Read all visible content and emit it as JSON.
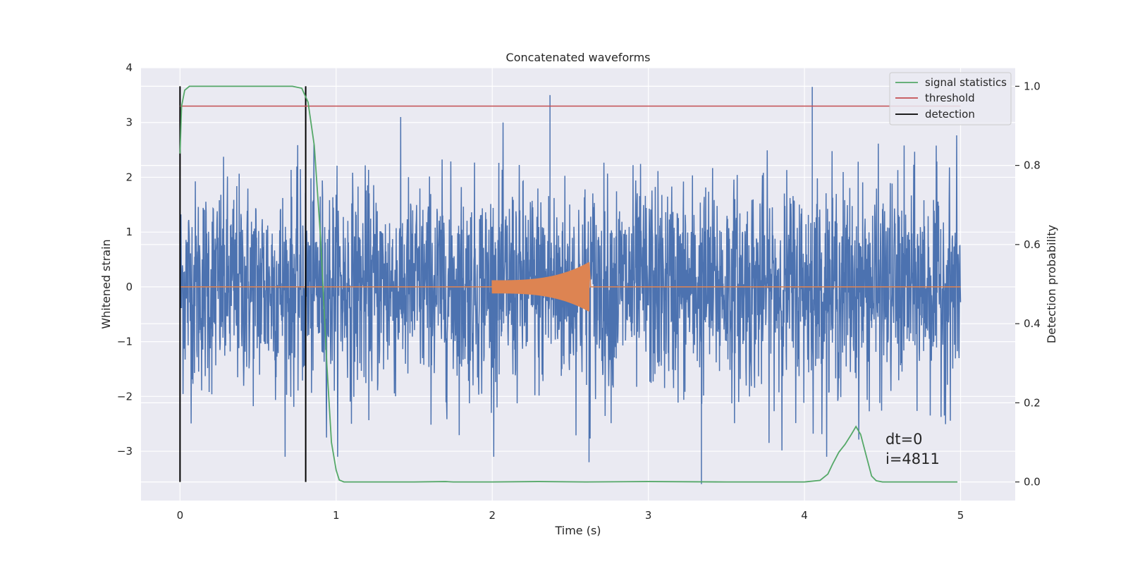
{
  "chart_data": {
    "type": "line",
    "title": "Concatenated waveforms",
    "xlabel": "Time (s)",
    "ylabel": "Whitened strain",
    "ylabel_right": "Detection probability",
    "xlim": [
      -0.25,
      5.35
    ],
    "ylim": [
      -3.9,
      4.0
    ],
    "ylim_right": [
      -0.047,
      1.047
    ],
    "x_ticks": [
      "0",
      "1",
      "2",
      "3",
      "4",
      "5"
    ],
    "y_ticks": [
      "4",
      "3",
      "2",
      "1",
      "0",
      "−1",
      "−2",
      "−3"
    ],
    "y_ticks_right": [
      "1.0",
      "0.8",
      "0.6",
      "0.4",
      "0.2",
      "0.0"
    ],
    "grid": true,
    "legend_position": "top-right",
    "series": [
      {
        "axis": "left",
        "color": "#4c72b0",
        "description": "whitened detector strain (noise), sampled ~2048 Hz over 0–5 s",
        "x_range": [
          0,
          5
        ],
        "amplitude_peak_max": 3.5,
        "amplitude_peak_min": -3.6
      },
      {
        "axis": "left",
        "color": "#dd8452",
        "description": "injected chirp waveform",
        "chirp_start": 2.0,
        "chirp_end": 2.62,
        "start_amplitude": 0.12,
        "end_amplitude": 0.45
      },
      {
        "name": "signal statistics",
        "axis": "right",
        "color": "#55a868",
        "x": [
          0.0,
          0.01,
          0.03,
          0.06,
          0.1,
          0.2,
          0.4,
          0.6,
          0.72,
          0.78,
          0.82,
          0.86,
          0.9,
          0.94,
          0.97,
          1.0,
          1.02,
          1.05,
          1.1,
          1.2,
          1.5,
          1.7,
          1.75,
          2.0,
          2.3,
          2.6,
          3.0,
          3.5,
          4.0,
          4.1,
          4.15,
          4.18,
          4.22,
          4.26,
          4.3,
          4.33,
          4.36,
          4.4,
          4.43,
          4.46,
          4.5,
          4.7,
          4.98
        ],
        "values": [
          0.83,
          0.95,
          0.99,
          1.0,
          1.0,
          1.0,
          1.0,
          1.0,
          1.0,
          0.995,
          0.96,
          0.85,
          0.62,
          0.3,
          0.1,
          0.03,
          0.005,
          0.0,
          0.0,
          0.0,
          0.0,
          0.001,
          0.0,
          0.0,
          0.001,
          0.0,
          0.001,
          0.0,
          0.0,
          0.004,
          0.02,
          0.045,
          0.075,
          0.095,
          0.12,
          0.14,
          0.12,
          0.06,
          0.015,
          0.003,
          0.0,
          0.0,
          0.0
        ]
      },
      {
        "name": "threshold",
        "axis": "right",
        "color": "#c44e52",
        "value": 0.95,
        "x_range": [
          0,
          5
        ]
      },
      {
        "name": "detection",
        "axis": "right",
        "color": "#000000",
        "type": "vlines",
        "x": [
          0.0,
          0.805
        ],
        "y_range": [
          0.0,
          1.0
        ]
      }
    ],
    "annotations": [
      "dt=0",
      "i=4811"
    ],
    "background": "#eaeaf2"
  }
}
